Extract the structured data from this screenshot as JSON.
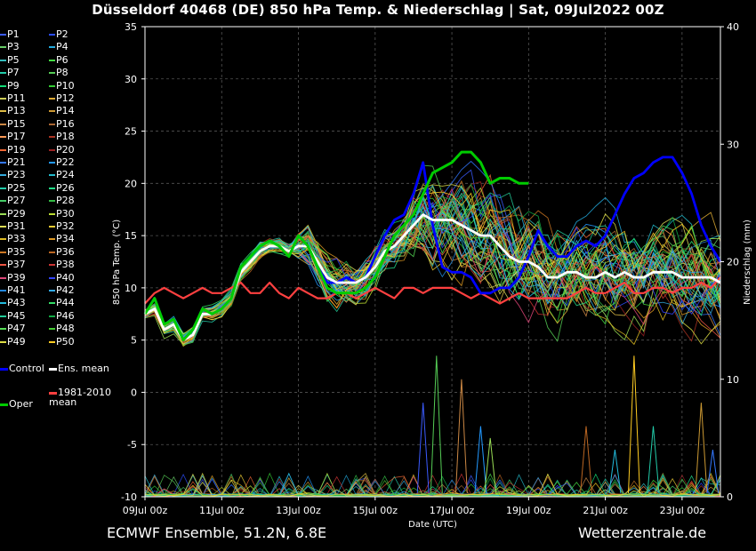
{
  "title": "Düsseldorf 40468 (DE)  850 hPa Temp. & Niederschlag | Sat, 09Jul2022 00Z",
  "footer": {
    "left": "ECMWF Ensemble, 51.2N, 6.8E",
    "right": "Wetterzentrale.de"
  },
  "colors": {
    "control": "#0000ff",
    "ens_mean": "#ffffff",
    "climate_mean": "#ff4040",
    "oper": "#00cc00"
  },
  "legend": {
    "members": [
      "P1",
      "P2",
      "P3",
      "P4",
      "P5",
      "P6",
      "P7",
      "P8",
      "P9",
      "P10",
      "P11",
      "P12",
      "P13",
      "P14",
      "P15",
      "P16",
      "P17",
      "P18",
      "P19",
      "P20",
      "P21",
      "P22",
      "P23",
      "P24",
      "P25",
      "P26",
      "P27",
      "P28",
      "P29",
      "P30",
      "P31",
      "P32",
      "P33",
      "P34",
      "P35",
      "P36",
      "P37",
      "P38",
      "P39",
      "P40",
      "P41",
      "P42",
      "P43",
      "P44",
      "P45",
      "P46",
      "P47",
      "P48",
      "P49",
      "P50"
    ],
    "member_colors": [
      "#3b5bff",
      "#2a4dff",
      "#66cc66",
      "#22aadd",
      "#33bbbb",
      "#44dd44",
      "#22ccaa",
      "#55cc55",
      "#11dd77",
      "#33cc33",
      "#cccc55",
      "#ddaa33",
      "#ddbb44",
      "#cc9933",
      "#cc8844",
      "#aa6633",
      "#ff9955",
      "#aa3322",
      "#ee6633",
      "#992222",
      "#3377ff",
      "#2299ff",
      "#33aadd",
      "#22bbcc",
      "#22ccaa",
      "#22dd88",
      "#44cc66",
      "#33bb44",
      "#99dd55",
      "#bbdd33",
      "#dddd55",
      "#eecc33",
      "#ddbb22",
      "#dd9922",
      "#cc7722",
      "#bb6622",
      "#ee5544",
      "#cc3333",
      "#dd4477",
      "#3344ff",
      "#2288dd",
      "#33aaee",
      "#22bbdd",
      "#33dd66",
      "#22cc99",
      "#11aa44",
      "#55dd55",
      "#44cc33",
      "#dddd44",
      "#ffcc22"
    ],
    "control": "Control",
    "ens_mean": "Ens. mean",
    "climate": "1981-2010 mean",
    "oper": "Oper"
  },
  "chart_data": {
    "type": "line",
    "xlabel": "Date (UTC)",
    "ylabel": "850 hPa Temp. (°C)",
    "ylabel_right": "Niederschlag (mm)",
    "x_ticks": [
      "09Jul 00z",
      "11Jul 00z",
      "13Jul 00z",
      "15Jul 00z",
      "17Jul 00z",
      "19Jul 00z",
      "21Jul 00z",
      "23Jul 00z"
    ],
    "x_range_days": [
      0,
      15
    ],
    "y_range": [
      -10,
      35
    ],
    "y_ticks": [
      -10,
      -5,
      0,
      5,
      10,
      15,
      20,
      25,
      30,
      35
    ],
    "y2_range": [
      0,
      40
    ],
    "y2_ticks": [
      0,
      10,
      20,
      30,
      40
    ],
    "grid": true,
    "series_temperature": [
      {
        "name": "Control",
        "x": [
          0,
          0.25,
          0.5,
          0.75,
          1,
          1.25,
          1.5,
          1.75,
          2,
          2.25,
          2.5,
          2.75,
          3,
          3.25,
          3.5,
          3.75,
          4,
          4.25,
          4.5,
          4.75,
          5,
          5.25,
          5.5,
          5.75,
          6,
          6.25,
          6.5,
          6.75,
          7,
          7.25,
          7.5,
          7.75,
          8,
          8.25,
          8.5,
          8.75,
          9,
          9.25,
          9.5,
          9.75,
          10,
          10.25,
          10.5,
          10.75,
          11,
          11.25,
          11.5,
          11.75,
          12,
          12.25,
          12.5,
          12.75,
          13,
          13.25,
          13.5,
          13.75,
          14,
          14.25,
          14.5,
          14.75,
          15
        ],
        "y": [
          7.5,
          9,
          6.5,
          7,
          5,
          6,
          8,
          7.5,
          8,
          9,
          12,
          13,
          14,
          14.5,
          14,
          13,
          15,
          14,
          12,
          10.5,
          10.5,
          11,
          10.5,
          11,
          13,
          15,
          16.5,
          17,
          19,
          22,
          16,
          12,
          11.5,
          11.5,
          11,
          9.5,
          9.5,
          10,
          10,
          11,
          13,
          15.5,
          14,
          13,
          13,
          14,
          14.5,
          14,
          15,
          17,
          19,
          20.5,
          21,
          22,
          22.5,
          22.5,
          21,
          19,
          16,
          14,
          12.5
        ]
      },
      {
        "name": "Ens. mean",
        "x": [
          0,
          0.25,
          0.5,
          0.75,
          1,
          1.25,
          1.5,
          1.75,
          2,
          2.25,
          2.5,
          2.75,
          3,
          3.25,
          3.5,
          3.75,
          4,
          4.25,
          4.5,
          4.75,
          5,
          5.25,
          5.5,
          5.75,
          6,
          6.25,
          6.5,
          6.75,
          7,
          7.25,
          7.5,
          7.75,
          8,
          8.25,
          8.5,
          8.75,
          9,
          9.25,
          9.5,
          9.75,
          10,
          10.25,
          10.5,
          10.75,
          11,
          11.25,
          11.5,
          11.75,
          12,
          12.25,
          12.5,
          12.75,
          13,
          13.25,
          13.5,
          13.75,
          14,
          14.25,
          14.5,
          14.75,
          15
        ],
        "y": [
          7.5,
          8,
          6,
          6.5,
          5,
          5.5,
          7.5,
          7.5,
          8,
          9,
          11.5,
          12.5,
          13.5,
          14,
          14,
          13.5,
          14,
          14,
          12.5,
          11,
          10.5,
          10.5,
          10.5,
          11,
          12,
          13.5,
          14,
          15,
          16,
          17,
          16.5,
          16.5,
          16.5,
          16,
          15.5,
          15,
          15,
          14,
          13,
          12.5,
          12.5,
          12,
          11,
          11,
          11.5,
          11.5,
          11,
          11,
          11.5,
          11,
          11.5,
          11,
          11,
          11.5,
          11.5,
          11.5,
          11,
          11,
          11,
          11,
          10.5
        ]
      },
      {
        "name": "1981-2010 mean",
        "x": [
          0,
          0.25,
          0.5,
          0.75,
          1,
          1.25,
          1.5,
          1.75,
          2,
          2.25,
          2.5,
          2.75,
          3,
          3.25,
          3.5,
          3.75,
          4,
          4.25,
          4.5,
          4.75,
          5,
          5.25,
          5.5,
          5.75,
          6,
          6.25,
          6.5,
          6.75,
          7,
          7.25,
          7.5,
          7.75,
          8,
          8.25,
          8.5,
          8.75,
          9,
          9.25,
          9.5,
          9.75,
          10,
          10.25,
          10.5,
          10.75,
          11,
          11.25,
          11.5,
          11.75,
          12,
          12.25,
          12.5,
          12.75,
          13,
          13.25,
          13.5,
          13.75,
          14,
          14.25,
          14.5,
          14.75,
          15
        ],
        "y": [
          8.5,
          9.5,
          10,
          9.5,
          9,
          9.5,
          10,
          9.5,
          9.5,
          10,
          10.5,
          9.5,
          9.5,
          10.5,
          9.5,
          9,
          10,
          9.5,
          9,
          9,
          9.5,
          9.5,
          9,
          9.5,
          10,
          9.5,
          9,
          10,
          10,
          9.5,
          10,
          10,
          10,
          9.5,
          9,
          9.5,
          9,
          8.5,
          9,
          9.5,
          9,
          9,
          9,
          9,
          9,
          9.5,
          10,
          9.5,
          9.5,
          10,
          10.5,
          9.5,
          9.5,
          10,
          10,
          9.5,
          10,
          10,
          10.5,
          10,
          11
        ]
      },
      {
        "name": "Oper",
        "x": [
          0,
          0.25,
          0.5,
          0.75,
          1,
          1.25,
          1.5,
          1.75,
          2,
          2.25,
          2.5,
          2.75,
          3,
          3.25,
          3.5,
          3.75,
          4,
          4.25,
          4.5,
          4.75,
          5,
          5.25,
          5.5,
          5.75,
          6,
          6.25,
          6.5,
          6.75,
          7,
          7.25,
          7.5,
          7.75,
          8,
          8.25,
          8.5,
          8.75,
          9,
          9.25,
          9.5,
          9.75,
          10
        ],
        "y": [
          7.5,
          9,
          6.5,
          7,
          5,
          6,
          8,
          7.5,
          8,
          9,
          12,
          13,
          14,
          14.5,
          14,
          13,
          15,
          14,
          12,
          10,
          9.5,
          9.5,
          9.5,
          10,
          11,
          13,
          15,
          16,
          17,
          19,
          21,
          21.5,
          22,
          23,
          23,
          22,
          20,
          20.5,
          20.5,
          20,
          20
        ]
      }
    ],
    "precipitation_peaks": [
      {
        "x": 7.25,
        "y": 8
      },
      {
        "x": 7.6,
        "y": 12
      },
      {
        "x": 8.25,
        "y": 10
      },
      {
        "x": 8.75,
        "y": 6
      },
      {
        "x": 9,
        "y": 5
      },
      {
        "x": 11.5,
        "y": 6
      },
      {
        "x": 12.25,
        "y": 4
      },
      {
        "x": 12.75,
        "y": 12
      },
      {
        "x": 13.25,
        "y": 6
      },
      {
        "x": 14.5,
        "y": 8
      },
      {
        "x": 14.8,
        "y": 4
      }
    ]
  }
}
